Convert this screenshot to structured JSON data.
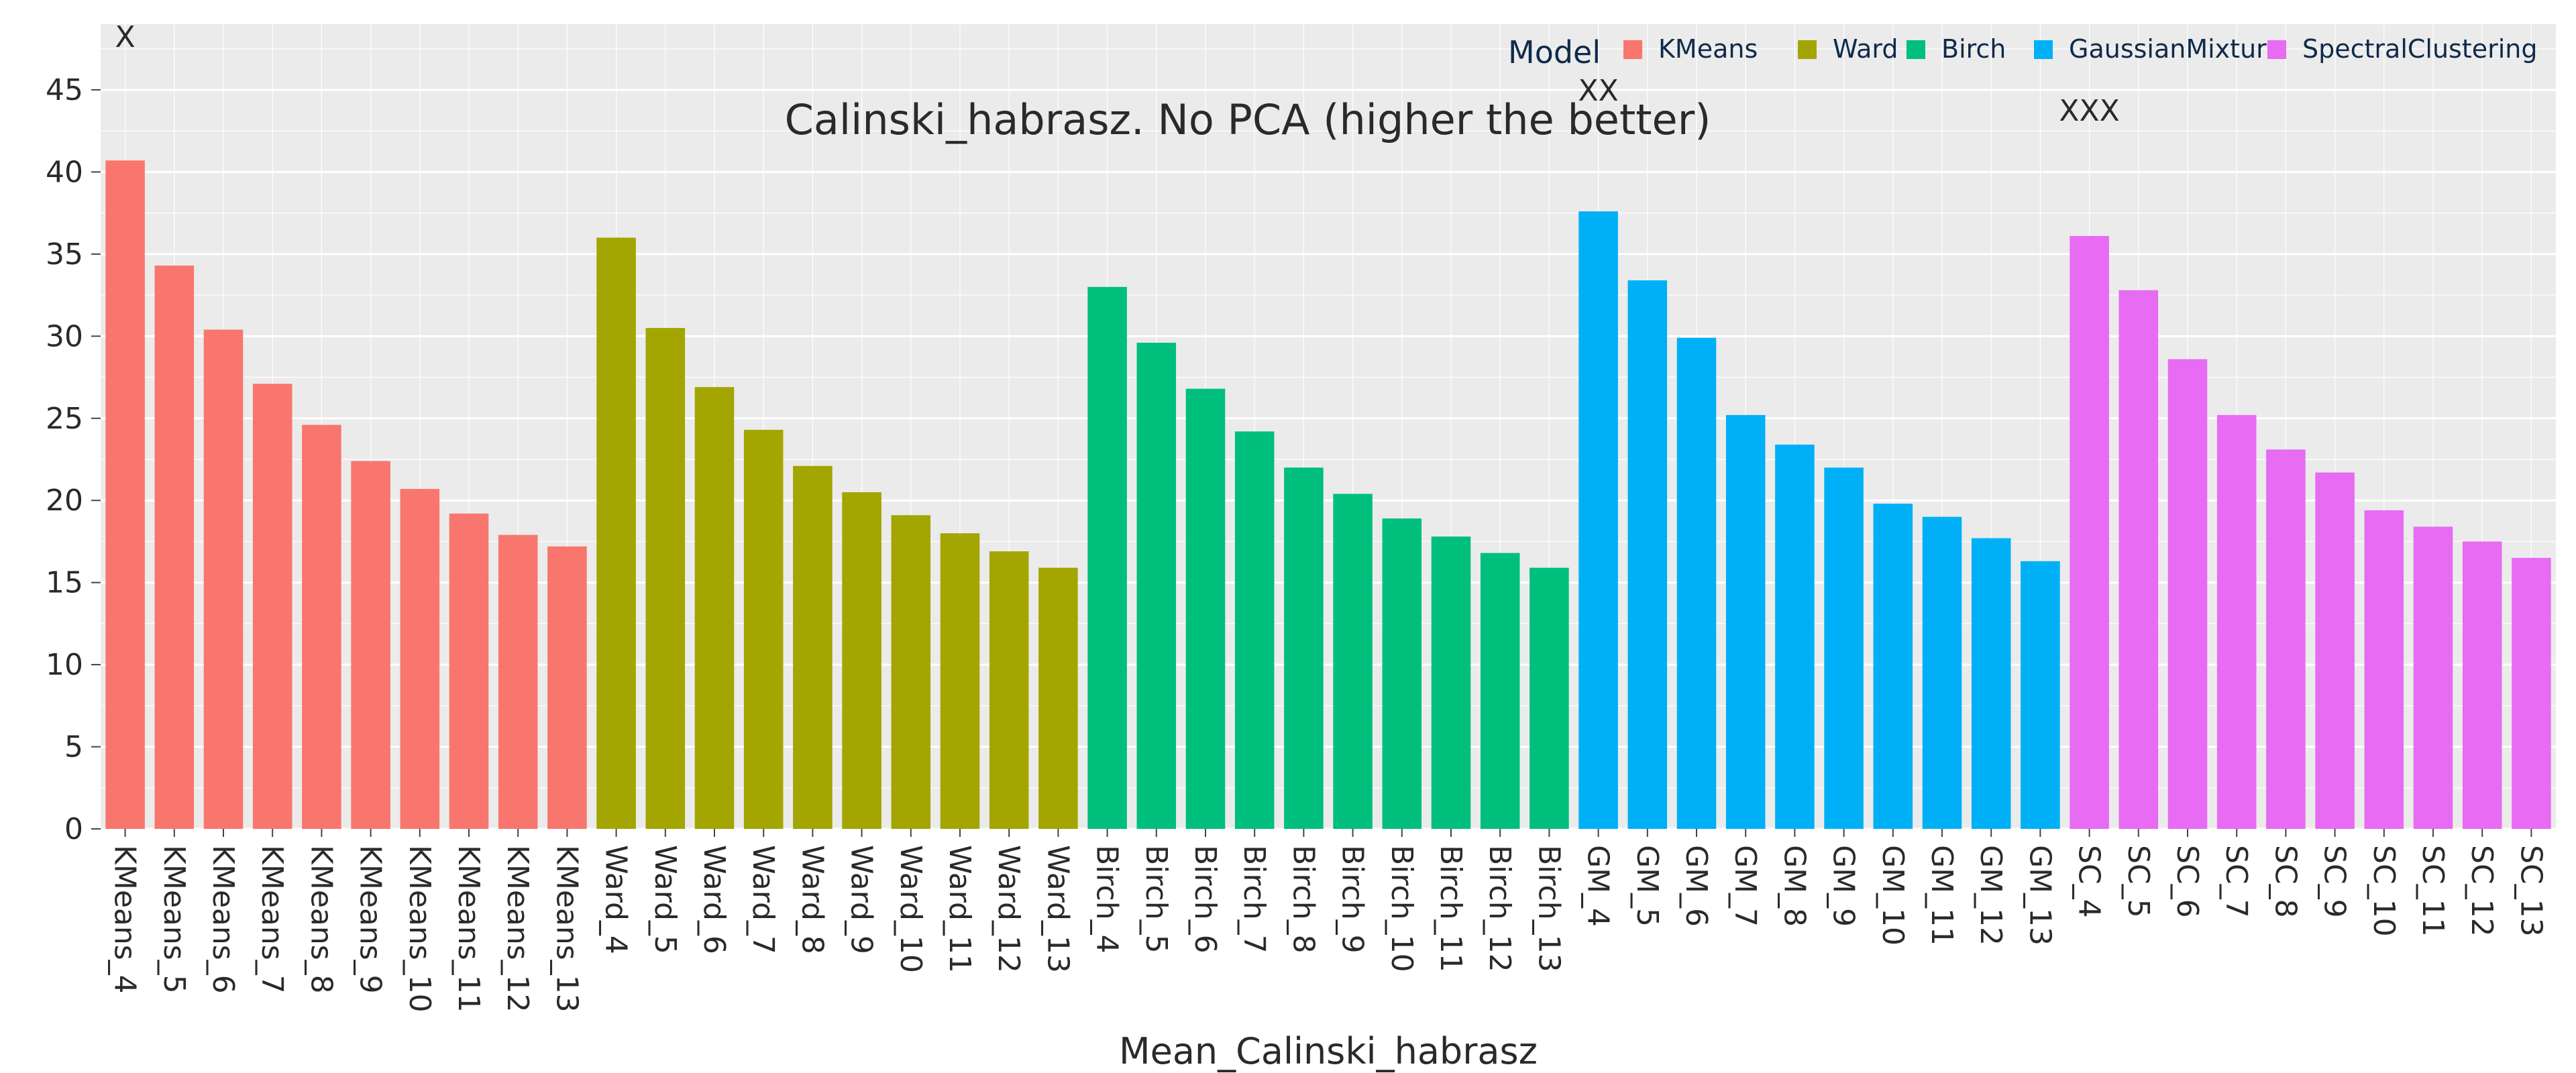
{
  "chart_data": {
    "type": "bar",
    "title": "Calinski_habrasz. No PCA (higher the better)",
    "xlabel": "Mean_Calinski_habrasz",
    "ylabel": "",
    "ylim": [
      0,
      49
    ],
    "yticks": [
      0,
      5,
      10,
      15,
      20,
      25,
      30,
      35,
      40,
      45
    ],
    "grid": true,
    "legend": {
      "title": "Model",
      "placement": "top-right"
    },
    "annotations": [
      {
        "text": "X",
        "x": "KMeans_4"
      },
      {
        "text": "XX",
        "x": "GM_4"
      },
      {
        "text": "XXX",
        "x": "SC_4"
      }
    ],
    "series": [
      {
        "name": "KMeans",
        "color": "#F8766D",
        "categories": [
          "KMeans_4",
          "KMeans_5",
          "KMeans_6",
          "KMeans_7",
          "KMeans_8",
          "KMeans_9",
          "KMeans_10",
          "KMeans_11",
          "KMeans_12",
          "KMeans_13"
        ],
        "values": [
          40.7,
          34.3,
          30.4,
          27.1,
          24.6,
          22.4,
          20.7,
          19.2,
          17.9,
          17.2
        ]
      },
      {
        "name": "Ward",
        "color": "#A3A500",
        "categories": [
          "Ward_4",
          "Ward_5",
          "Ward_6",
          "Ward_7",
          "Ward_8",
          "Ward_9",
          "Ward_10",
          "Ward_11",
          "Ward_12",
          "Ward_13"
        ],
        "values": [
          36.0,
          30.5,
          26.9,
          24.3,
          22.1,
          20.5,
          19.1,
          18.0,
          16.9,
          15.9
        ]
      },
      {
        "name": "Birch",
        "color": "#00BF7D",
        "categories": [
          "Birch_4",
          "Birch_5",
          "Birch_6",
          "Birch_7",
          "Birch_8",
          "Birch_9",
          "Birch_10",
          "Birch_11",
          "Birch_12",
          "Birch_13"
        ],
        "values": [
          33.0,
          29.6,
          26.8,
          24.2,
          22.0,
          20.4,
          18.9,
          17.8,
          16.8,
          15.9
        ]
      },
      {
        "name": "GaussianMixture",
        "color": "#00B0F6",
        "categories": [
          "GM_4",
          "GM_5",
          "GM_6",
          "GM_7",
          "GM_8",
          "GM_9",
          "GM_10",
          "GM_11",
          "GM_12",
          "GM_13"
        ],
        "values": [
          37.6,
          33.4,
          29.9,
          25.2,
          23.4,
          22.0,
          19.8,
          19.0,
          17.7,
          16.3
        ]
      },
      {
        "name": "SpectralClustering",
        "color": "#E76BF3",
        "categories": [
          "SC_4",
          "SC_5",
          "SC_6",
          "SC_7",
          "SC_8",
          "SC_9",
          "SC_10",
          "SC_11",
          "SC_12",
          "SC_13"
        ],
        "values": [
          36.1,
          32.8,
          28.6,
          25.2,
          23.1,
          21.7,
          19.4,
          18.4,
          17.5,
          16.5
        ]
      }
    ]
  }
}
